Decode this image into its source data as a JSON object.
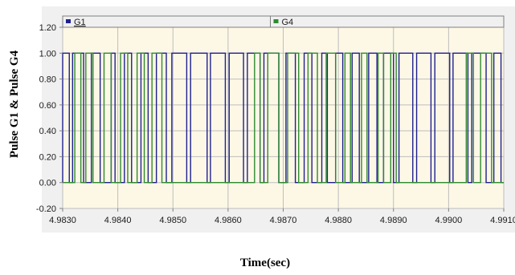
{
  "colors": {
    "panel_bg": "#f0f0f0",
    "plot_bg": "#fdf8e6",
    "grid": "#bdbdbd",
    "axis": "#808080",
    "g1": "#1f1f8f",
    "g4": "#2e8b2e"
  },
  "chart_data": {
    "type": "line",
    "title": "",
    "xlabel": "Time(sec)",
    "ylabel": "Pulse G1 & Pulse G4",
    "xlim": [
      4.983,
      4.991
    ],
    "ylim": [
      -0.2,
      1.2
    ],
    "x_ticks": [
      "4.9830",
      "4.9840",
      "4.9850",
      "4.9860",
      "4.9870",
      "4.9880",
      "4.9890",
      "4.9900",
      "4.9910"
    ],
    "y_ticks": [
      "1.20",
      "1.00",
      "0.80",
      "0.60",
      "0.40",
      "0.20",
      "0.00",
      "-0.20"
    ],
    "grid": true,
    "legend_position": "top",
    "series": [
      {
        "name": "G1",
        "color": "#1f1f8f",
        "high_intervals": [
          [
            4.983,
            4.98312
          ],
          [
            4.98318,
            4.98338
          ],
          [
            4.98352,
            4.98368
          ],
          [
            4.98388,
            4.98395
          ],
          [
            4.98412,
            4.98425
          ],
          [
            4.98442,
            4.98455
          ],
          [
            4.9847,
            4.98488
          ],
          [
            4.98498,
            4.98525
          ],
          [
            4.98532,
            4.98562
          ],
          [
            4.98568,
            4.98595
          ],
          [
            4.98602,
            4.98628
          ],
          [
            4.98635,
            4.98658
          ],
          [
            4.98665,
            4.98692
          ],
          [
            4.98705,
            4.98722
          ],
          [
            4.98738,
            4.98752
          ],
          [
            4.9877,
            4.9878
          ],
          [
            4.98795,
            4.98808
          ],
          [
            4.98825,
            4.98838
          ],
          [
            4.98855,
            4.9887
          ],
          [
            4.98882,
            4.989
          ],
          [
            4.9891,
            4.98935
          ],
          [
            4.98942,
            4.98968
          ],
          [
            4.98975,
            4.99002
          ],
          [
            4.99008,
            4.99035
          ],
          [
            4.99042,
            4.99068
          ],
          [
            4.99082,
            4.99095
          ]
        ]
      },
      {
        "name": "G4",
        "color": "#2e8b2e",
        "high_intervals": [
          [
            4.98322,
            4.98333
          ],
          [
            4.98342,
            4.98355
          ],
          [
            4.98375,
            4.98388
          ],
          [
            4.98405,
            4.98418
          ],
          [
            4.98435,
            4.98448
          ],
          [
            4.98462,
            4.9848
          ],
          [
            4.98648,
            4.98658
          ],
          [
            4.98672,
            4.98692
          ],
          [
            4.98708,
            4.98728
          ],
          [
            4.98745,
            4.98762
          ],
          [
            4.98778,
            4.98795
          ],
          [
            4.98812,
            4.98822
          ],
          [
            4.98842,
            4.98852
          ],
          [
            4.98872,
            4.98882
          ],
          [
            4.98895,
            4.98905
          ],
          [
            4.99032,
            4.99045
          ],
          [
            4.99058,
            4.99078
          ]
        ]
      }
    ]
  }
}
